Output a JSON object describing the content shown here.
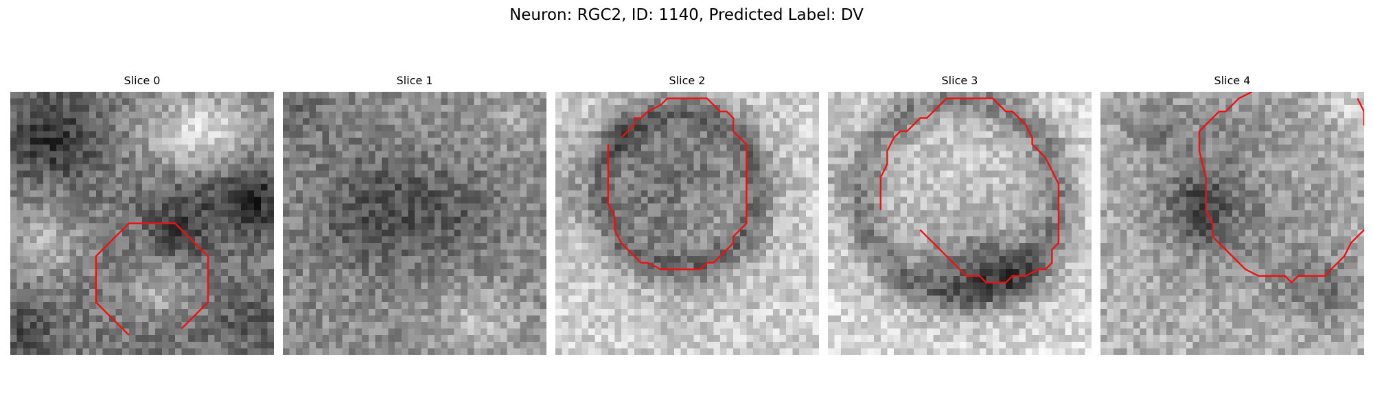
{
  "figure": {
    "title": "Neuron: RGC2, ID: 1140, Predicted Label: DV"
  },
  "colors": {
    "contour": "#ee1111",
    "background": "#ffffff",
    "text": "#000000"
  },
  "panels": [
    {
      "title": "Slice 0",
      "pattern": "bright upper-right region, dark left and mid-right blobs",
      "contour": [
        [
          18,
          37
        ],
        [
          13,
          32
        ],
        [
          13,
          25
        ],
        [
          18,
          20
        ],
        [
          25,
          20
        ],
        [
          30,
          25
        ],
        [
          30,
          32
        ],
        [
          26,
          36
        ]
      ]
    },
    {
      "title": "Slice 1",
      "pattern": "uniform noisy mid-grey texture with darker center",
      "contour": []
    },
    {
      "title": "Slice 2",
      "pattern": "dark ring around medium-grey cell body",
      "contour": [
        [
          10,
          7
        ],
        [
          12,
          5
        ],
        [
          12,
          4
        ],
        [
          13,
          4
        ],
        [
          14,
          3
        ],
        [
          16,
          2
        ],
        [
          17,
          1
        ],
        [
          23,
          1
        ],
        [
          25,
          3
        ],
        [
          26,
          3
        ],
        [
          27,
          4
        ],
        [
          27,
          6
        ],
        [
          29,
          8
        ],
        [
          29,
          20
        ],
        [
          27,
          22
        ],
        [
          27,
          23
        ],
        [
          25,
          25
        ],
        [
          24,
          26
        ],
        [
          23,
          26
        ],
        [
          22,
          27
        ],
        [
          16,
          27
        ],
        [
          14,
          26
        ],
        [
          13,
          26
        ],
        [
          10,
          23
        ],
        [
          9,
          21
        ],
        [
          9,
          19
        ],
        [
          8,
          17
        ],
        [
          8,
          8
        ]
      ]
    },
    {
      "title": "Slice 3",
      "pattern": "large light cell body with dark bottom region",
      "contour": [
        [
          8,
          18
        ],
        [
          8,
          13
        ],
        [
          9,
          11
        ],
        [
          9,
          9
        ],
        [
          10,
          7
        ],
        [
          11,
          6
        ],
        [
          12,
          6
        ],
        [
          13,
          5
        ],
        [
          14,
          4
        ],
        [
          15,
          4
        ],
        [
          16,
          3
        ],
        [
          18,
          1
        ],
        [
          25,
          1
        ],
        [
          27,
          3
        ],
        [
          28,
          3
        ],
        [
          30,
          5
        ],
        [
          31,
          7
        ],
        [
          31,
          8
        ],
        [
          33,
          10
        ],
        [
          34,
          12
        ],
        [
          35,
          14
        ],
        [
          35,
          23
        ],
        [
          34,
          24
        ],
        [
          34,
          26
        ],
        [
          33,
          27
        ],
        [
          32,
          27
        ],
        [
          30,
          28
        ],
        [
          28,
          28
        ],
        [
          27,
          29
        ],
        [
          24,
          29
        ],
        [
          23,
          28
        ],
        [
          21,
          28
        ],
        [
          20,
          27
        ],
        [
          19,
          26
        ],
        [
          15,
          22
        ],
        [
          14,
          21
        ]
      ]
    },
    {
      "title": "Slice 4",
      "pattern": "mottled cell with dark core and dark lower-right area",
      "contour": [
        [
          39,
          1
        ],
        [
          40,
          3
        ],
        [
          40,
          5
        ],
        [
          41,
          6
        ],
        [
          42,
          7
        ],
        [
          42,
          18
        ],
        [
          41,
          19
        ],
        [
          40,
          21
        ],
        [
          38,
          23
        ],
        [
          37,
          25
        ],
        [
          35,
          27
        ],
        [
          34,
          28
        ],
        [
          30,
          28
        ],
        [
          29,
          29
        ],
        [
          28,
          28
        ],
        [
          24,
          28
        ],
        [
          22,
          27
        ],
        [
          20,
          25
        ],
        [
          18,
          23
        ],
        [
          17,
          22
        ],
        [
          17,
          20
        ],
        [
          16,
          18
        ],
        [
          16,
          13
        ],
        [
          15,
          9
        ],
        [
          15,
          6
        ],
        [
          16,
          5
        ],
        [
          17,
          4
        ],
        [
          18,
          3
        ],
        [
          19,
          3
        ],
        [
          20,
          2
        ],
        [
          21,
          1
        ],
        [
          23,
          0
        ]
      ]
    }
  ]
}
